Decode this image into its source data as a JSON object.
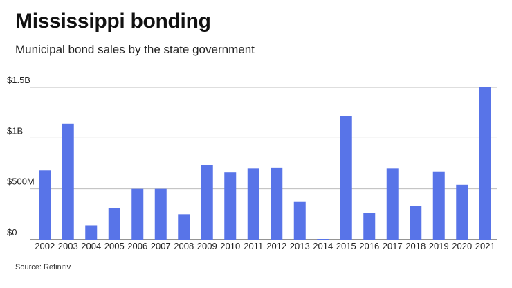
{
  "header": {
    "title": "Mississippi bonding",
    "subtitle": "Municipal bond sales by the state government"
  },
  "footer": {
    "source": "Source: Refinitiv"
  },
  "colors": {
    "bar": "#5874e8",
    "grid": "#bdbdbd",
    "baseline": "#555555"
  },
  "chart_data": {
    "type": "bar",
    "title": "Mississippi bonding",
    "subtitle": "Municipal bond sales by the state government",
    "xlabel": "",
    "ylabel": "",
    "ylim": [
      0,
      1.5
    ],
    "unit": "billions of dollars",
    "yticks": [
      {
        "value": 0,
        "label": "$0"
      },
      {
        "value": 0.5,
        "label": "$500M"
      },
      {
        "value": 1.0,
        "label": "$1B"
      },
      {
        "value": 1.5,
        "label": "$1.5B"
      }
    ],
    "grid": true,
    "legend": "none",
    "categories": [
      "2002",
      "2003",
      "2004",
      "2005",
      "2006",
      "2007",
      "2008",
      "2009",
      "2010",
      "2011",
      "2012",
      "2013",
      "2014",
      "2015",
      "2016",
      "2017",
      "2018",
      "2019",
      "2020",
      "2021"
    ],
    "values": [
      0.68,
      1.14,
      0.14,
      0.31,
      0.5,
      0.5,
      0.25,
      0.73,
      0.66,
      0.7,
      0.71,
      0.37,
      0.005,
      1.22,
      0.26,
      0.7,
      0.33,
      0.67,
      0.54,
      1.5
    ]
  }
}
